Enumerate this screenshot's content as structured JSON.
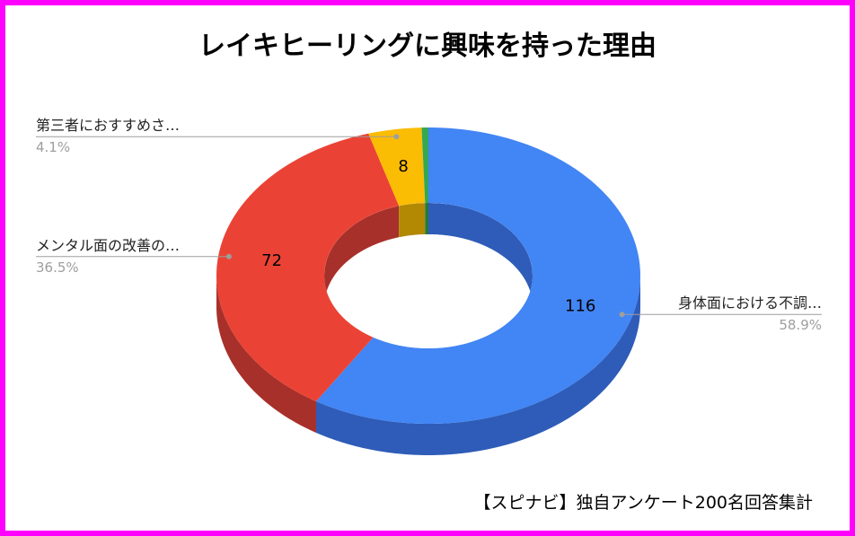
{
  "source_note": "【スピナビ】独自アンケート200名回答集計",
  "colors": {
    "border": "#ff00ff",
    "background": "#ffffff",
    "leader_line": "#9e9e9e",
    "label_text": "#222222",
    "percent_text": "#9e9e9e",
    "value_text": "#000000"
  },
  "chart_data": {
    "type": "pie",
    "variant": "3d-donut",
    "title": "レイキヒーリングに興味を持った理由",
    "start_angle": "top",
    "direction": "clockwise",
    "slices": [
      {
        "label": "身体面における不調…",
        "value": 116,
        "percent": "58.9%",
        "label_side": "right",
        "show_value": true,
        "color": "#4285f4",
        "side_color": "#2e5cb8"
      },
      {
        "label": "メンタル面の改善の…",
        "value": 72,
        "percent": "36.5%",
        "label_side": "left",
        "show_value": true,
        "color": "#ea4335",
        "side_color": "#a8302a"
      },
      {
        "label": "第三者におすすめさ…",
        "value": 8,
        "percent": "4.1%",
        "label_side": "left",
        "show_value": true,
        "color": "#fbbc04",
        "side_color": "#b38803"
      },
      {
        "label": "",
        "value": 1,
        "show_value": false,
        "color": "#34a853",
        "side_color": "#25783b"
      }
    ]
  }
}
